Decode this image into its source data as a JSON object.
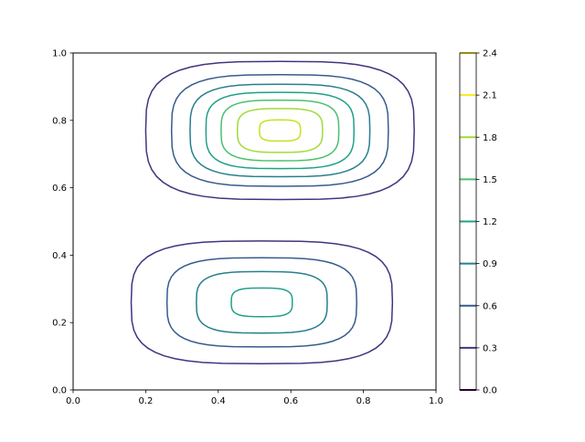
{
  "chart_data": {
    "type": "contour",
    "title": "",
    "xlabel": "",
    "ylabel": "",
    "xlim": [
      0.0,
      1.0
    ],
    "ylim": [
      0.0,
      1.0
    ],
    "x_ticks": [
      "0.0",
      "0.2",
      "0.4",
      "0.6",
      "0.8",
      "1.0"
    ],
    "y_ticks": [
      "0.0",
      "0.2",
      "0.4",
      "0.6",
      "0.8",
      "1.0"
    ],
    "grid": false,
    "colormap": "viridis",
    "colorbar": {
      "range": [
        0.0,
        2.4
      ],
      "ticks": [
        "0.0",
        "0.3",
        "0.6",
        "0.9",
        "1.2",
        "1.5",
        "1.8",
        "2.1",
        "2.4"
      ],
      "level_colors": [
        "#440154",
        "#46327e",
        "#365c8d",
        "#277f8e",
        "#1fa187",
        "#4ac16d",
        "#a0da39",
        "#fde725"
      ]
    },
    "peaks": [
      {
        "x": 0.57,
        "y": 0.77,
        "peak_value": 2.2,
        "x_halfwidth": 0.37,
        "y_halfwidth": 0.205
      },
      {
        "x": 0.52,
        "y": 0.26,
        "peak_value": 1.3,
        "x_halfwidth": 0.36,
        "y_halfwidth": 0.182
      }
    ],
    "contour_levels": [
      {
        "value": 0.3,
        "peak": 0,
        "color": "#46327e"
      },
      {
        "value": 0.6,
        "peak": 0,
        "color": "#365c8d"
      },
      {
        "value": 0.9,
        "peak": 0,
        "color": "#277f8e"
      },
      {
        "value": 1.2,
        "peak": 0,
        "color": "#1fa187"
      },
      {
        "value": 1.5,
        "peak": 0,
        "color": "#4ac16d"
      },
      {
        "value": 1.8,
        "peak": 0,
        "color": "#a0da39"
      },
      {
        "value": 2.1,
        "peak": 0,
        "color": "#c8e020"
      },
      {
        "value": 0.3,
        "peak": 1,
        "color": "#46327e"
      },
      {
        "value": 0.6,
        "peak": 1,
        "color": "#365c8d"
      },
      {
        "value": 0.9,
        "peak": 1,
        "color": "#277f8e"
      },
      {
        "value": 1.2,
        "peak": 1,
        "color": "#1fa187"
      }
    ]
  }
}
